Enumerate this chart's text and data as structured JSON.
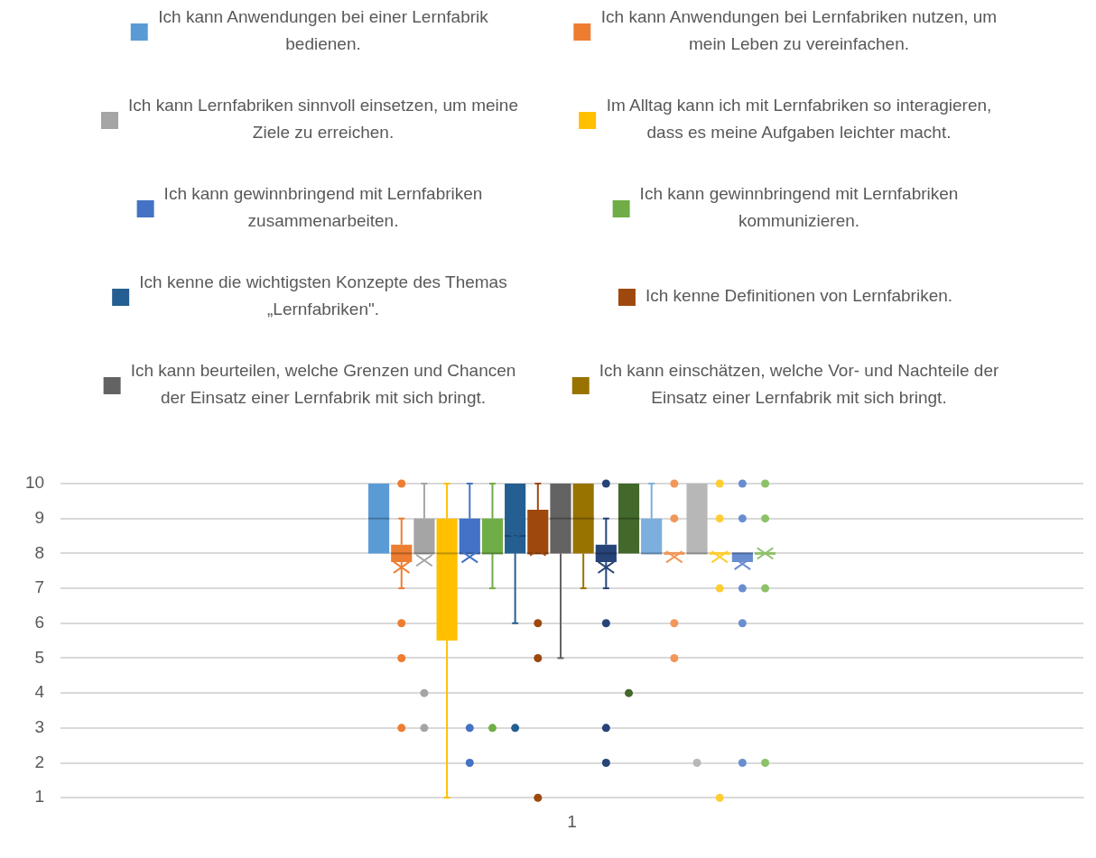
{
  "chart_data": {
    "type": "box",
    "categories": [
      "1"
    ],
    "ylim": [
      1,
      10
    ],
    "yticks": [
      1,
      2,
      3,
      4,
      5,
      6,
      7,
      8,
      9,
      10
    ],
    "grid": "y",
    "legend": "top",
    "marker": "circle",
    "series": [
      {
        "name": "Ich kann Anwendungen bei einer Lernfabrik bedienen.",
        "color": "#5b9bd5",
        "boxes": [
          {
            "low": 8,
            "q1": 8,
            "median": 9,
            "q3": 10,
            "high": 10,
            "mean": 8.8
          }
        ]
      },
      {
        "name": "Ich kann Anwendungen bei Lernfabriken nutzen, um mein Leben zu vereinfachen.",
        "color": "#ed7d31",
        "boxes": [
          {
            "low": 7,
            "q1": 7.75,
            "median": 8,
            "q3": 8.25,
            "high": 9,
            "mean": 7.6,
            "outliers": [
              10,
              6,
              5,
              3
            ]
          }
        ]
      },
      {
        "name": "Ich kann Lernfabriken sinnvoll einsetzen, um meine Ziele zu erreichen.",
        "color": "#a5a5a5",
        "boxes": [
          {
            "low": 8,
            "q1": 8,
            "median": 8,
            "q3": 9,
            "high": 10,
            "mean": 7.8,
            "outliers": [
              4,
              3
            ]
          }
        ]
      },
      {
        "name": "Im Alltag kann ich mit Lernfabriken so interagieren, dass es meine Aufgaben leichter macht.",
        "color": "#ffc000",
        "boxes": [
          {
            "low": 1,
            "q1": 5.5,
            "median": 8,
            "q3": 9,
            "high": 10,
            "mean": 7.2
          }
        ]
      },
      {
        "name": "Ich kann gewinnbringend mit Lernfabriken zusammenarbeiten.",
        "color": "#4472c4",
        "boxes": [
          {
            "low": 8,
            "q1": 8,
            "median": 8,
            "q3": 9,
            "high": 10,
            "mean": 7.9,
            "outliers": [
              3,
              2
            ]
          }
        ]
      },
      {
        "name": "Ich kann gewinnbringend mit Lernfabriken kommunizieren.",
        "color": "#70ad47",
        "boxes": [
          {
            "low": 7,
            "q1": 8,
            "median": 8,
            "q3": 9,
            "high": 10,
            "mean": 8.25,
            "outliers": [
              3
            ]
          }
        ]
      },
      {
        "name": "Ich kenne die wichtigsten Konzepte des Themas „Lernfabriken\".",
        "color": "#255e91",
        "boxes": [
          {
            "low": 6,
            "q1": 8,
            "median": 8.5,
            "q3": 10,
            "high": 10,
            "mean": 8.45,
            "outliers": [
              3
            ]
          }
        ]
      },
      {
        "name": "Ich kenne Definitionen von Lernfabriken.",
        "color": "#9e480e",
        "boxes": [
          {
            "low": 8,
            "q1": 8,
            "median": 8,
            "q3": 9.25,
            "high": 10,
            "mean": 8.1,
            "outliers": [
              6,
              5,
              1
            ]
          }
        ]
      },
      {
        "name": "Ich kann beurteilen, welche Grenzen und Chancen der Einsatz einer Lernfabrik mit sich bringt.",
        "color": "#636363",
        "boxes": [
          {
            "low": 5,
            "q1": 8,
            "median": 9,
            "q3": 10,
            "high": 10,
            "mean": 8.5
          }
        ]
      },
      {
        "name": "Ich kann einschätzen, welche Vor- und Nachteile der Einsatz einer Lernfabrik mit sich bringt.",
        "color": "#997300",
        "boxes": [
          {
            "low": 7,
            "q1": 8,
            "median": 9,
            "q3": 10,
            "high": 10,
            "mean": 8.6
          }
        ]
      },
      {
        "color": "#264478",
        "boxes": [
          {
            "low": 7,
            "q1": 7.75,
            "median": 8,
            "q3": 8.25,
            "high": 9,
            "mean": 7.6,
            "outliers": [
              10,
              6,
              3,
              2
            ]
          }
        ]
      },
      {
        "color": "#43682b",
        "boxes": [
          {
            "low": 8,
            "q1": 8,
            "median": 9,
            "q3": 10,
            "high": 10,
            "mean": 8.55,
            "outliers": [
              4
            ]
          }
        ]
      },
      {
        "color": "#7cafdd",
        "boxes": [
          {
            "low": 8,
            "q1": 8,
            "median": 8,
            "q3": 9,
            "high": 10,
            "mean": 8.45
          }
        ]
      },
      {
        "color": "#f1975a",
        "boxes": [
          {
            "low": 8,
            "q1": 8,
            "median": 8,
            "q3": 8,
            "high": 8,
            "mean": 7.9,
            "outliers": [
              10,
              9,
              6,
              5
            ]
          }
        ]
      },
      {
        "color": "#b7b7b7",
        "boxes": [
          {
            "low": 8,
            "q1": 8,
            "median": 8,
            "q3": 10,
            "high": 10,
            "mean": 8.35,
            "outliers": [
              2
            ]
          }
        ]
      },
      {
        "color": "#ffcd33",
        "boxes": [
          {
            "low": 8,
            "q1": 8,
            "median": 8,
            "q3": 8,
            "high": 8,
            "mean": 7.9,
            "outliers": [
              10,
              9,
              7,
              1
            ]
          }
        ]
      },
      {
        "color": "#698ed0",
        "boxes": [
          {
            "low": 7.75,
            "q1": 7.75,
            "median": 8,
            "q3": 8,
            "high": 8,
            "mean": 7.7,
            "outliers": [
              10,
              9,
              7,
              6,
              2
            ]
          }
        ]
      },
      {
        "color": "#8cc168",
        "boxes": [
          {
            "low": 8,
            "q1": 8,
            "median": 8,
            "q3": 8,
            "high": 8,
            "mean": 8,
            "outliers": [
              10,
              9,
              7,
              2
            ]
          }
        ]
      }
    ]
  }
}
